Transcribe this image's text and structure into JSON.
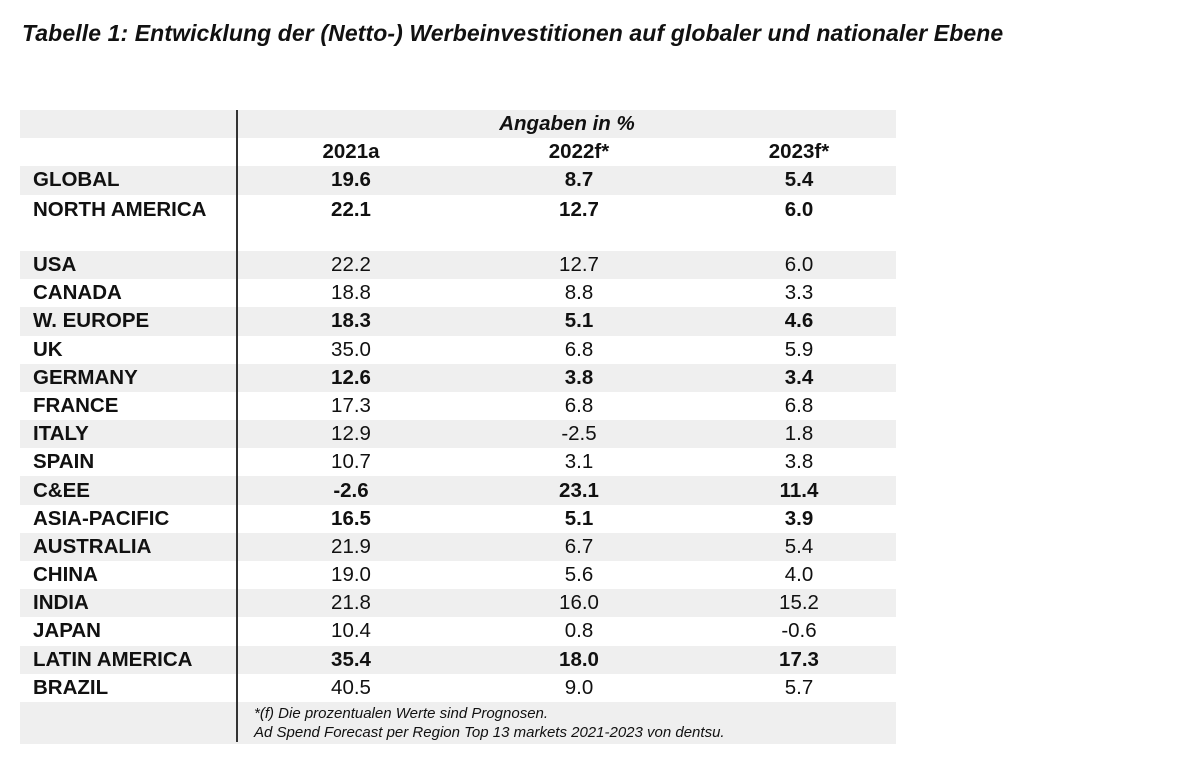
{
  "title": "Tabelle 1: Entwicklung der (Netto-) Werbeinvestitionen auf globaler und nationaler Ebene",
  "unit_label": "Angaben in %",
  "columns": [
    "2021a",
    "2022f*",
    "2023f*"
  ],
  "rows": [
    {
      "region": "GLOBAL",
      "v": [
        "19.6",
        "8.7",
        "5.4"
      ]
    },
    {
      "region": "NORTH AMERICA",
      "v": [
        "22.1",
        "12.7",
        "6.0"
      ]
    },
    {
      "region": "USA",
      "v": [
        "22.2",
        "12.7",
        "6.0"
      ]
    },
    {
      "region": "CANADA",
      "v": [
        "18.8",
        "8.8",
        "3.3"
      ]
    },
    {
      "region": "W. EUROPE",
      "v": [
        "18.3",
        "5.1",
        "4.6"
      ]
    },
    {
      "region": "UK",
      "v": [
        "35.0",
        "6.8",
        "5.9"
      ]
    },
    {
      "region": "GERMANY",
      "v": [
        "12.6",
        "3.8",
        "3.4"
      ]
    },
    {
      "region": "FRANCE",
      "v": [
        "17.3",
        "6.8",
        "6.8"
      ]
    },
    {
      "region": "ITALY",
      "v": [
        "12.9",
        "-2.5",
        "1.8"
      ]
    },
    {
      "region": "SPAIN",
      "v": [
        "10.7",
        "3.1",
        "3.8"
      ]
    },
    {
      "region": "C&EE",
      "v": [
        "-2.6",
        "23.1",
        "11.4"
      ]
    },
    {
      "region": "ASIA-PACIFIC",
      "v": [
        "16.5",
        "5.1",
        "3.9"
      ]
    },
    {
      "region": "AUSTRALIA",
      "v": [
        "21.9",
        "6.7",
        "5.4"
      ]
    },
    {
      "region": "CHINA",
      "v": [
        "19.0",
        "5.6",
        "4.0"
      ]
    },
    {
      "region": "INDIA",
      "v": [
        "21.8",
        "16.0",
        "15.2"
      ]
    },
    {
      "region": "JAPAN",
      "v": [
        "10.4",
        "0.8",
        "-0.6"
      ]
    },
    {
      "region": "LATIN AMERICA",
      "v": [
        "35.4",
        "18.0",
        "17.3"
      ]
    },
    {
      "region": "BRAZIL",
      "v": [
        "40.5",
        "9.0",
        "5.7"
      ]
    }
  ],
  "footnote": {
    "line1": "*(f) Die prozentualen Werte sind Prognosen.",
    "line2": "Ad Spend Forecast per Region Top 13 markets 2021-2023 von dentsu."
  }
}
